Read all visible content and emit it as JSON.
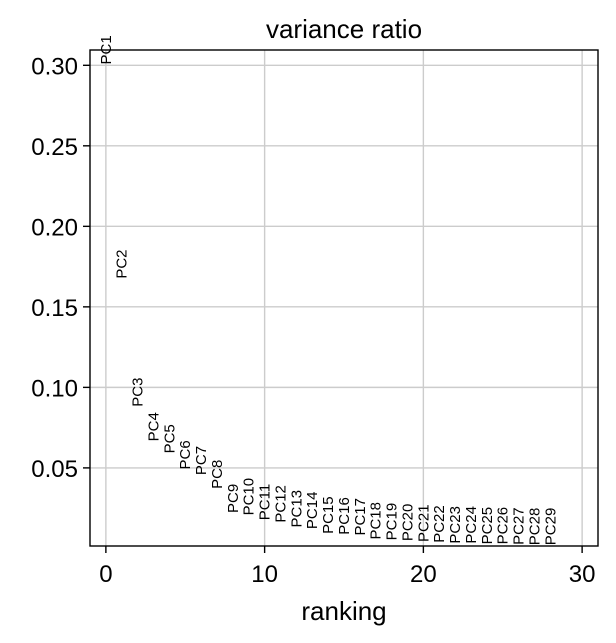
{
  "chart_data": {
    "type": "scatter",
    "title": "variance ratio",
    "xlabel": "ranking",
    "ylabel": "",
    "xlim": [
      -1,
      31
    ],
    "ylim": [
      0.0015,
      0.3095
    ],
    "grid": true,
    "legend": "none",
    "x_ticks": [
      {
        "value": 0,
        "label": "0"
      },
      {
        "value": 10,
        "label": "10"
      },
      {
        "value": 20,
        "label": "20"
      },
      {
        "value": 30,
        "label": "30"
      }
    ],
    "y_ticks": [
      {
        "value": 0.05,
        "label": "0.05"
      },
      {
        "value": 0.1,
        "label": "0.10"
      },
      {
        "value": 0.15,
        "label": "0.15"
      },
      {
        "value": 0.2,
        "label": "0.20"
      },
      {
        "value": 0.25,
        "label": "0.25"
      },
      {
        "value": 0.3,
        "label": "0.30"
      }
    ],
    "points": [
      {
        "x": 0,
        "y": 0.3005,
        "label": "PC1"
      },
      {
        "x": 1,
        "y": 0.1675,
        "label": "PC2"
      },
      {
        "x": 2,
        "y": 0.088,
        "label": "PC3"
      },
      {
        "x": 3,
        "y": 0.0665,
        "label": "PC4"
      },
      {
        "x": 4,
        "y": 0.059,
        "label": "PC5"
      },
      {
        "x": 5,
        "y": 0.049,
        "label": "PC6"
      },
      {
        "x": 6,
        "y": 0.0455,
        "label": "PC7"
      },
      {
        "x": 7,
        "y": 0.037,
        "label": "PC8"
      },
      {
        "x": 8,
        "y": 0.022,
        "label": "PC9"
      },
      {
        "x": 9,
        "y": 0.0205,
        "label": "PC10"
      },
      {
        "x": 10,
        "y": 0.0175,
        "label": "PC11"
      },
      {
        "x": 11,
        "y": 0.016,
        "label": "PC12"
      },
      {
        "x": 12,
        "y": 0.013,
        "label": "PC13"
      },
      {
        "x": 13,
        "y": 0.012,
        "label": "PC14"
      },
      {
        "x": 14,
        "y": 0.009,
        "label": "PC15"
      },
      {
        "x": 15,
        "y": 0.0085,
        "label": "PC16"
      },
      {
        "x": 16,
        "y": 0.008,
        "label": "PC17"
      },
      {
        "x": 17,
        "y": 0.0055,
        "label": "PC18"
      },
      {
        "x": 18,
        "y": 0.005,
        "label": "PC19"
      },
      {
        "x": 19,
        "y": 0.0045,
        "label": "PC20"
      },
      {
        "x": 20,
        "y": 0.004,
        "label": "PC21"
      },
      {
        "x": 21,
        "y": 0.0035,
        "label": "PC22"
      },
      {
        "x": 22,
        "y": 0.003,
        "label": "PC23"
      },
      {
        "x": 23,
        "y": 0.003,
        "label": "PC24"
      },
      {
        "x": 24,
        "y": 0.0025,
        "label": "PC25"
      },
      {
        "x": 25,
        "y": 0.0025,
        "label": "PC26"
      },
      {
        "x": 26,
        "y": 0.0022,
        "label": "PC27"
      },
      {
        "x": 27,
        "y": 0.002,
        "label": "PC28"
      },
      {
        "x": 28,
        "y": 0.002,
        "label": "PC29"
      }
    ]
  }
}
